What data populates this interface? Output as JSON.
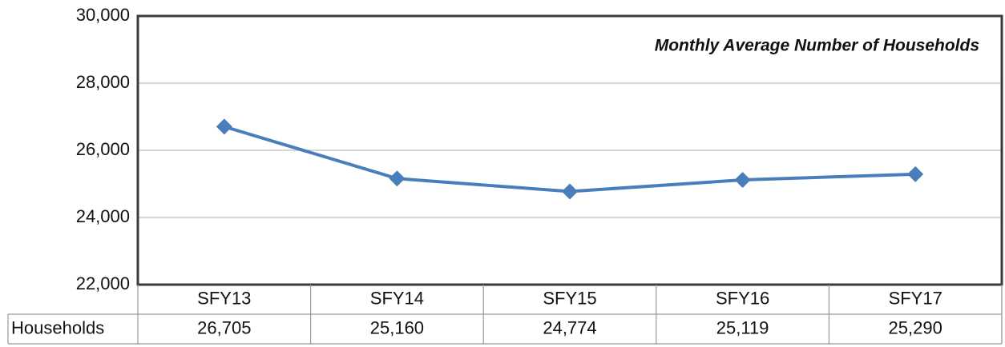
{
  "chart_data": {
    "type": "line",
    "title": "Monthly Average Number of Households",
    "categories": [
      "SFY13",
      "SFY14",
      "SFY15",
      "SFY16",
      "SFY17"
    ],
    "series": [
      {
        "name": "Households",
        "color": "#4a7ebb",
        "values": [
          26705,
          25160,
          24774,
          25119,
          25290
        ],
        "value_labels": [
          "26,705",
          "25,160",
          "24,774",
          "25,119",
          "25,290"
        ]
      }
    ],
    "ylim": [
      22000,
      30000
    ],
    "yticks": [
      {
        "value": 22000,
        "label": "22,000"
      },
      {
        "value": 24000,
        "label": "24,000"
      },
      {
        "value": 26000,
        "label": "26,000"
      },
      {
        "value": 28000,
        "label": "28,000"
      },
      {
        "value": 30000,
        "label": "30,000"
      }
    ],
    "grid": true
  }
}
